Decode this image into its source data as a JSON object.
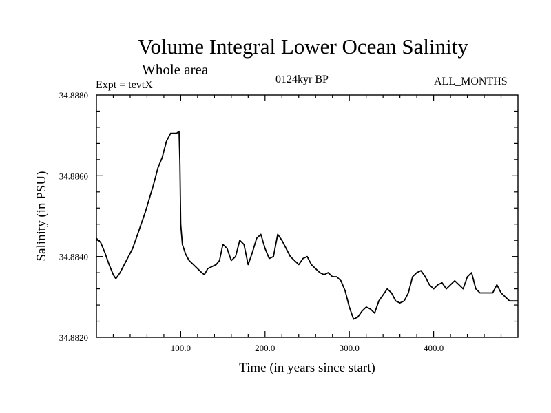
{
  "header": {
    "title": "Volume Integral Lower Ocean Salinity",
    "subtitle": "Whole area",
    "expt": "Expt = tevtX",
    "period": "0124kyr BP",
    "months": "ALL_MONTHS"
  },
  "chart_data": {
    "type": "line",
    "title": "Volume Integral Lower Ocean Salinity",
    "xlabel": "Time (in years since start)",
    "ylabel": "Salinity (in PSU)",
    "xlim": [
      0,
      500
    ],
    "ylim": [
      34.882,
      34.888
    ],
    "xticks": [
      {
        "value": 100,
        "label": "100.0"
      },
      {
        "value": 200,
        "label": "200.0"
      },
      {
        "value": 300,
        "label": "300.0"
      },
      {
        "value": 400,
        "label": "400.0"
      }
    ],
    "yticks": [
      {
        "value": 34.882,
        "label": "34.8820"
      },
      {
        "value": 34.884,
        "label": "34.8840"
      },
      {
        "value": 34.886,
        "label": "34.8860"
      },
      {
        "value": 34.888,
        "label": "34.8880"
      }
    ],
    "series": [
      {
        "name": "salinity",
        "x": [
          0,
          5,
          10,
          15,
          20,
          23,
          28,
          33,
          38,
          43,
          48,
          53,
          58,
          63,
          68,
          73,
          78,
          83,
          88,
          92,
          95,
          98,
          99,
          100,
          102,
          106,
          110,
          115,
          120,
          125,
          128,
          132,
          137,
          142,
          146,
          150,
          155,
          160,
          165,
          170,
          175,
          180,
          185,
          190,
          195,
          200,
          205,
          210,
          215,
          220,
          225,
          230,
          235,
          240,
          245,
          250,
          255,
          260,
          265,
          270,
          275,
          280,
          285,
          290,
          295,
          300,
          305,
          310,
          315,
          320,
          325,
          330,
          335,
          340,
          345,
          350,
          355,
          360,
          365,
          370,
          375,
          380,
          385,
          390,
          395,
          400,
          405,
          410,
          415,
          420,
          425,
          430,
          435,
          440,
          445,
          450,
          455,
          460,
          465,
          470,
          475,
          480,
          485,
          490,
          495,
          500
        ],
        "y": [
          34.88445,
          34.88435,
          34.8841,
          34.8838,
          34.88355,
          34.88345,
          34.8836,
          34.8838,
          34.884,
          34.8842,
          34.8845,
          34.8848,
          34.8851,
          34.88545,
          34.8858,
          34.8862,
          34.88645,
          34.88685,
          34.88705,
          34.88705,
          34.88705,
          34.8871,
          34.8863,
          34.8848,
          34.8843,
          34.88405,
          34.8839,
          34.8838,
          34.8837,
          34.8836,
          34.88355,
          34.8837,
          34.88375,
          34.8838,
          34.8839,
          34.8843,
          34.8842,
          34.8839,
          34.884,
          34.8844,
          34.8843,
          34.8838,
          34.8841,
          34.88445,
          34.88455,
          34.8842,
          34.88395,
          34.884,
          34.88455,
          34.8844,
          34.8842,
          34.884,
          34.8839,
          34.8838,
          34.88395,
          34.884,
          34.8838,
          34.8837,
          34.8836,
          34.88355,
          34.8836,
          34.8835,
          34.8835,
          34.8834,
          34.88315,
          34.88275,
          34.88245,
          34.8825,
          34.88265,
          34.88275,
          34.8827,
          34.8826,
          34.8829,
          34.88305,
          34.8832,
          34.8831,
          34.8829,
          34.88285,
          34.8829,
          34.8831,
          34.8835,
          34.8836,
          34.88365,
          34.8835,
          34.8833,
          34.8832,
          34.8833,
          34.88335,
          34.8832,
          34.8833,
          34.8834,
          34.8833,
          34.8832,
          34.8835,
          34.8836,
          34.8832,
          34.8831,
          34.8831,
          34.8831,
          34.8831,
          34.8833,
          34.8831,
          34.883,
          34.8829,
          34.8829,
          34.8829
        ]
      }
    ]
  }
}
